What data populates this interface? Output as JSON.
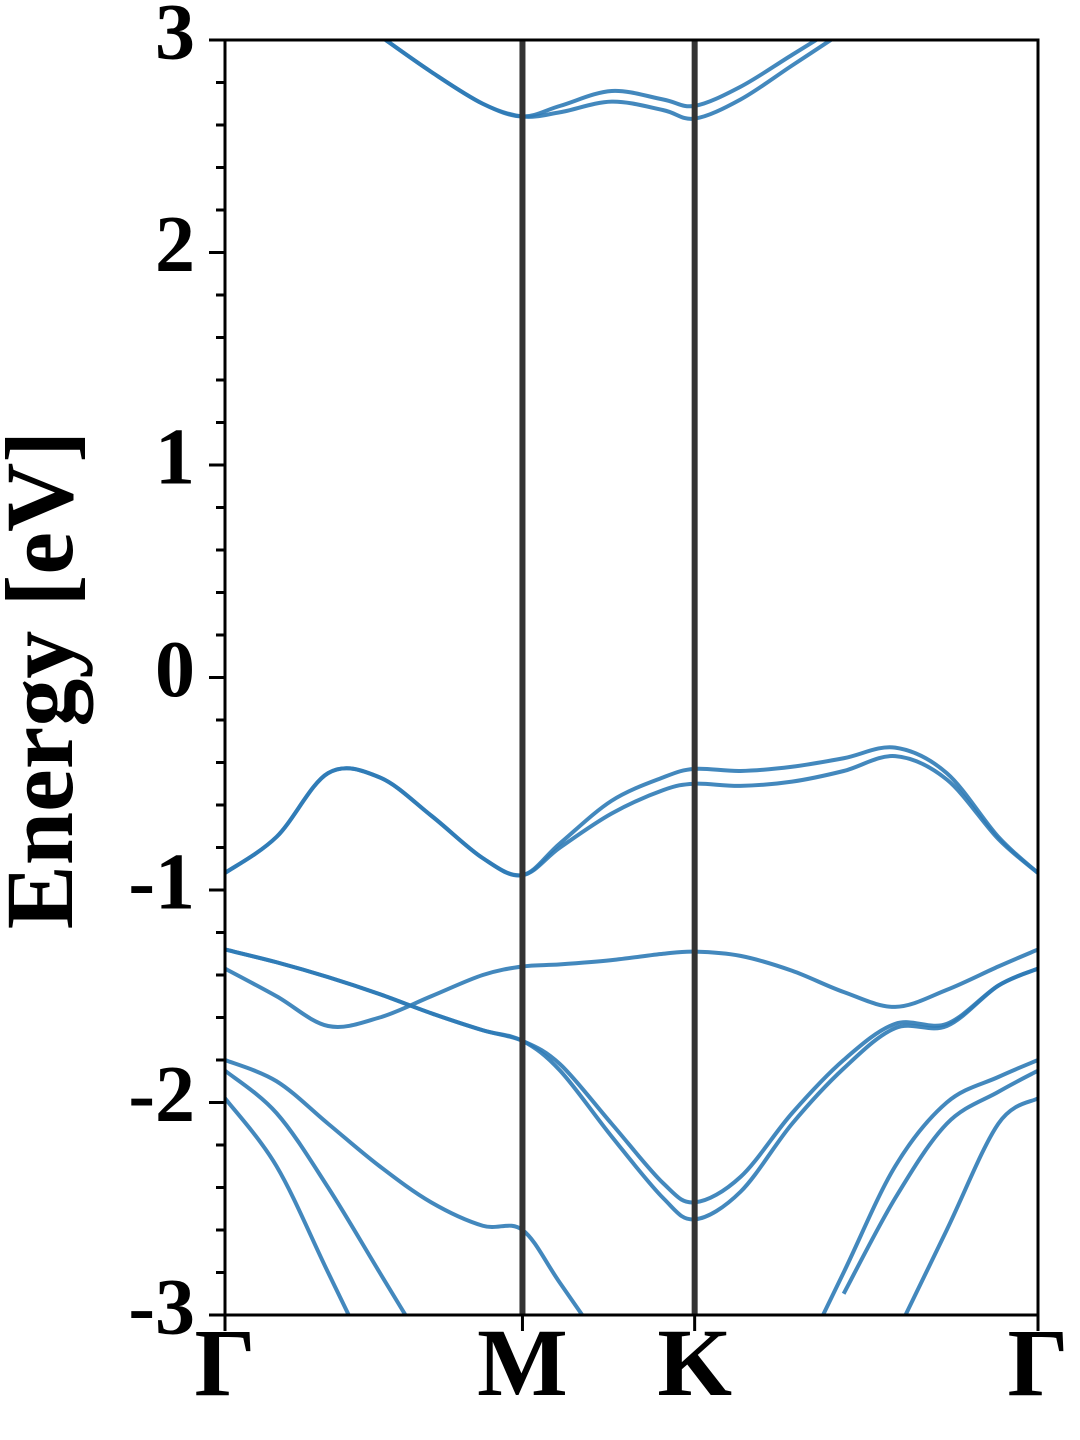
{
  "chart_data": {
    "type": "band_structure",
    "ylabel": "Energy [eV]",
    "xlim": [
      0,
      1.577
    ],
    "xticks": [
      {
        "value": 0,
        "label": "Γ"
      },
      {
        "value": 0.577,
        "label": "M"
      },
      {
        "value": 0.911,
        "label": "K"
      },
      {
        "value": 1.577,
        "label": "Γ"
      }
    ],
    "ylim": [
      -3,
      3
    ],
    "yticks": [
      -3,
      -2,
      -1,
      0,
      1,
      2,
      3
    ],
    "y_minor_divisions": 5,
    "x": [
      0,
      0.1,
      0.2,
      0.3,
      0.4,
      0.5,
      0.577,
      0.65,
      0.75,
      0.85,
      0.911,
      1.0,
      1.1,
      1.2,
      1.3,
      1.4,
      1.5,
      1.577
    ],
    "series": [
      {
        "color": "#2f7bb6",
        "values": [
          -0.92,
          -0.75,
          -0.45,
          -0.47,
          -0.65,
          -0.85,
          -0.93,
          -0.78,
          -0.58,
          -0.47,
          -0.43,
          -0.44,
          -0.42,
          -0.38,
          -0.33,
          -0.45,
          -0.75,
          -0.92
        ]
      },
      {
        "color": "#2f7bb6",
        "values": [
          -0.92,
          -0.75,
          -0.45,
          -0.47,
          -0.65,
          -0.85,
          -0.93,
          -0.8,
          -0.64,
          -0.53,
          -0.5,
          -0.51,
          -0.49,
          -0.44,
          -0.37,
          -0.48,
          -0.76,
          -0.92
        ]
      },
      {
        "color": "#2f7bb6",
        "values": [
          null,
          null,
          null,
          3.02,
          2.85,
          2.7,
          2.64,
          2.69,
          2.76,
          2.72,
          2.69,
          2.78,
          2.93,
          3.08,
          null,
          null,
          null,
          null
        ]
      },
      {
        "color": "#2f7bb6",
        "values": [
          null,
          null,
          null,
          3.02,
          2.85,
          2.7,
          2.64,
          2.66,
          2.71,
          2.67,
          2.63,
          2.72,
          2.88,
          3.04,
          null,
          null,
          null,
          null
        ]
      },
      {
        "color": "#2f7bb6",
        "values": [
          -1.28,
          -1.34,
          -1.41,
          -1.49,
          -1.58,
          -1.66,
          -1.71,
          -1.82,
          -2.1,
          -2.38,
          -2.47,
          -2.35,
          -2.05,
          -1.8,
          -1.63,
          -1.63,
          -1.45,
          -1.37
        ]
      },
      {
        "color": "#2f7bb6",
        "values": [
          -1.28,
          -1.34,
          -1.41,
          -1.49,
          -1.58,
          -1.66,
          -1.71,
          -1.85,
          -2.16,
          -2.45,
          -2.55,
          -2.42,
          -2.1,
          -1.84,
          -1.65,
          -1.64,
          -1.45,
          -1.37
        ]
      },
      {
        "color": "#2f7bb6",
        "values": [
          -1.37,
          -1.5,
          -1.64,
          -1.6,
          -1.5,
          -1.4,
          -1.36,
          -1.35,
          -1.33,
          -1.3,
          -1.29,
          -1.31,
          -1.38,
          -1.48,
          -1.55,
          -1.47,
          -1.36,
          -1.28
        ]
      },
      {
        "color": "#2f7bb6",
        "values": [
          -1.8,
          -1.9,
          -2.1,
          -2.3,
          -2.47,
          -2.58,
          -2.6,
          -2.85,
          -3.2,
          null,
          null,
          null,
          -3.3,
          -2.8,
          -2.3,
          -2.0,
          -1.88,
          -1.8
        ]
      },
      {
        "color": "#2f7bb6",
        "values": [
          -1.85,
          -2.05,
          -2.4,
          -2.8,
          -3.2,
          null,
          null,
          null,
          null,
          null,
          null,
          null,
          null,
          -2.9,
          -2.45,
          -2.1,
          -1.95,
          -1.85
        ]
      },
      {
        "color": "#2f7bb6",
        "values": [
          -1.98,
          -2.3,
          -2.8,
          -3.3,
          null,
          null,
          null,
          null,
          null,
          null,
          null,
          null,
          null,
          null,
          -3.1,
          -2.6,
          -2.1,
          -1.98
        ]
      }
    ]
  }
}
